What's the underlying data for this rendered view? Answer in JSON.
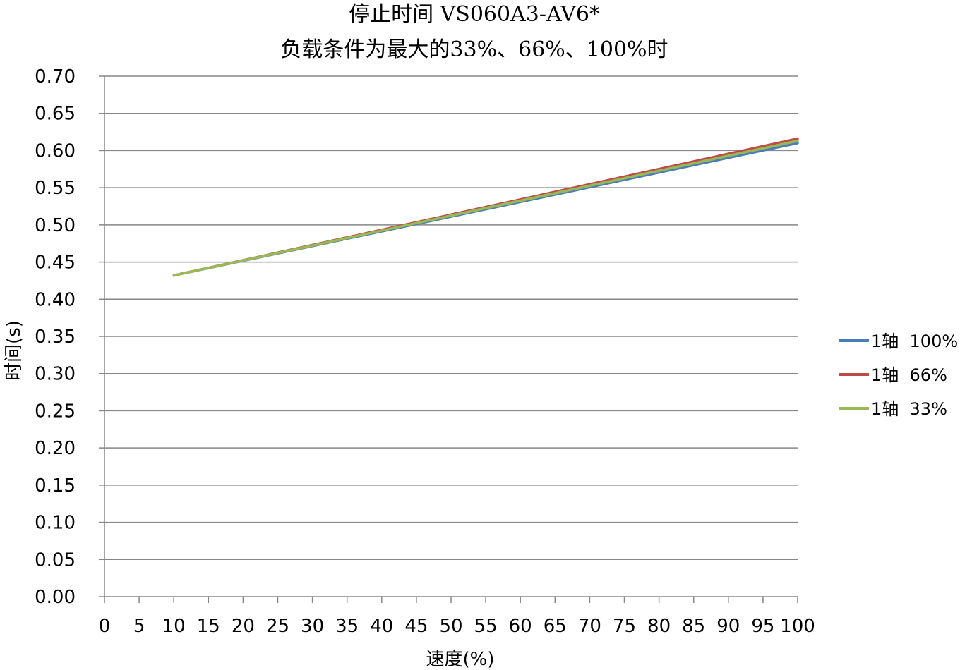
{
  "chart_data": {
    "type": "line",
    "title_line1": "停止时间 VS060A3-AV6*",
    "title_line2": "负载条件为最大的33%、66%、100%时",
    "xlabel": "速度(%)",
    "ylabel": "时间(s)",
    "xlim": [
      0,
      100
    ],
    "ylim": [
      0,
      0.7
    ],
    "x_ticks": [
      "0",
      "5",
      "10",
      "15",
      "20",
      "25",
      "30",
      "35",
      "40",
      "45",
      "50",
      "55",
      "60",
      "65",
      "70",
      "75",
      "80",
      "85",
      "90",
      "95",
      "100"
    ],
    "y_ticks": [
      "0.00",
      "0.05",
      "0.10",
      "0.15",
      "0.20",
      "0.25",
      "0.30",
      "0.35",
      "0.40",
      "0.45",
      "0.50",
      "0.55",
      "0.60",
      "0.65",
      "0.70"
    ],
    "grid": true,
    "legend_position": "right",
    "series": [
      {
        "name": "1轴  100%",
        "color": "#4a7ebb",
        "x": [
          10,
          100
        ],
        "y": [
          0.432,
          0.61
        ]
      },
      {
        "name": "1轴  66%",
        "color": "#be4b48",
        "x": [
          10,
          100
        ],
        "y": [
          0.432,
          0.616
        ]
      },
      {
        "name": "1轴  33%",
        "color": "#98b954",
        "x": [
          10,
          100
        ],
        "y": [
          0.432,
          0.613
        ]
      }
    ]
  }
}
